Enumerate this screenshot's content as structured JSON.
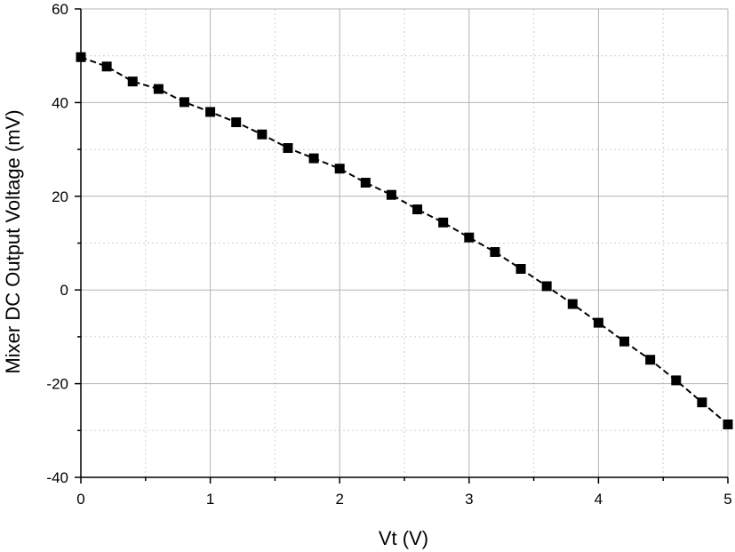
{
  "chart_data": {
    "type": "scatter",
    "title": "",
    "xlabel": "Vt (V)",
    "ylabel": "Mixer DC Output Voltage (mV)",
    "xlim": [
      0,
      5
    ],
    "ylim": [
      -40,
      60
    ],
    "xticks": [
      0,
      1,
      2,
      3,
      4,
      5
    ],
    "yticks": [
      -40,
      -20,
      0,
      20,
      40,
      60
    ],
    "x_minor_step": 0.5,
    "y_minor_step": 10,
    "grid": true,
    "legend": "none",
    "colors": {
      "series": "#000000",
      "grid": "#b4b4b4"
    },
    "series": [
      {
        "marker": "square",
        "line": "dashed",
        "x": [
          0,
          0.2,
          0.4,
          0.6,
          0.8,
          1.0,
          1.2,
          1.4,
          1.6,
          1.8,
          2.0,
          2.2,
          2.4,
          2.6,
          2.8,
          3.0,
          3.2,
          3.4,
          3.6,
          3.8,
          4.0,
          4.2,
          4.4,
          4.6,
          4.8,
          5.0
        ],
        "y": [
          49.7,
          47.7,
          44.5,
          42.9,
          40.1,
          38.0,
          35.8,
          33.2,
          30.3,
          28.1,
          25.9,
          22.9,
          20.3,
          17.2,
          14.4,
          11.2,
          8.1,
          4.5,
          0.8,
          -3.0,
          -7.0,
          -11.0,
          -14.9,
          -19.3,
          -24.0,
          -28.7
        ]
      }
    ]
  }
}
